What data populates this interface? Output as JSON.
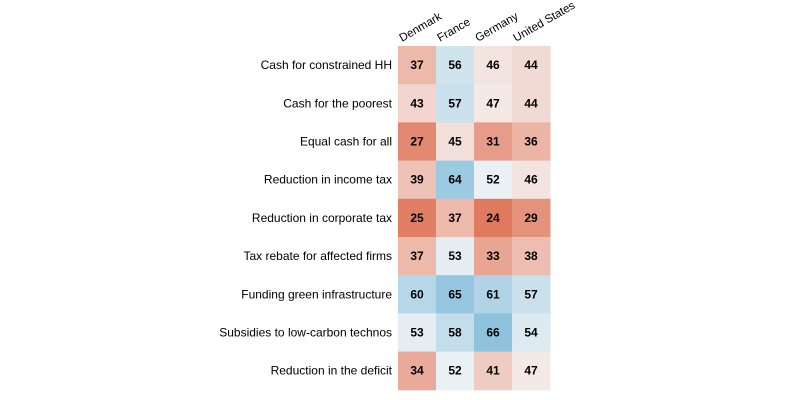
{
  "chart_data": {
    "type": "heatmap",
    "title": "",
    "columns": [
      "Denmark",
      "France",
      "Germany",
      "United States"
    ],
    "rows": [
      "Cash for constrained HH",
      "Cash for the poorest",
      "Equal cash for all",
      "Reduction in income tax",
      "Reduction in corporate tax",
      "Tax rebate for affected firms",
      "Funding green infrastructure",
      "Subsidies to low-carbon technos",
      "Reduction in the deficit"
    ],
    "values": [
      [
        37,
        56,
        46,
        44
      ],
      [
        43,
        57,
        47,
        44
      ],
      [
        27,
        45,
        31,
        36
      ],
      [
        39,
        64,
        52,
        46
      ],
      [
        25,
        37,
        24,
        29
      ],
      [
        37,
        53,
        33,
        38
      ],
      [
        60,
        65,
        61,
        57
      ],
      [
        53,
        58,
        66,
        54
      ],
      [
        34,
        52,
        41,
        47
      ]
    ],
    "color_scale": {
      "low_color": "#e07a5f",
      "mid_color": "#f7f7f7",
      "high_color": "#8fc3dd",
      "low_value": 24,
      "mid_value": 50,
      "high_value": 66
    },
    "grid": false,
    "legend": "none"
  }
}
